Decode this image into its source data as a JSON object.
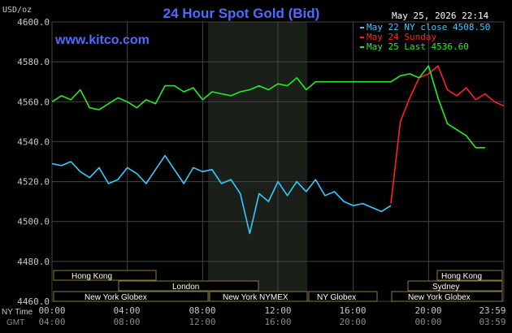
{
  "header": {
    "title": "24 Hour Spot Gold (Bid)",
    "datetime": "May 25, 2026 22:14",
    "website": "www.kitco.com",
    "unit": "USD/oz"
  },
  "legend": [
    {
      "label": "May 22 NY close 4508.50",
      "color": "#33ccff"
    },
    {
      "label": "May 24 Sunday",
      "color": "#ff2222"
    },
    {
      "label": "May 25 Last 4536.60",
      "color": "#22ee22"
    }
  ],
  "axis": {
    "y_labels": [
      "4600.0",
      "4580.0",
      "4560.0",
      "4540.0",
      "4520.0",
      "4500.0",
      "4480.0",
      "4460.0"
    ],
    "x_ny_caption": "NY Time",
    "x_gmt_caption": "GMT",
    "x_ny_labels": [
      "00:00",
      "04:00",
      "08:00",
      "12:00",
      "16:00",
      "20:00",
      "23:59"
    ],
    "x_gmt_labels": [
      "04:00",
      "08:00",
      "12:00",
      "16:00",
      "20:00",
      "00:00",
      "03:59"
    ]
  },
  "markets": {
    "hong_kong_1": "Hong Kong",
    "london": "London",
    "new_york_globex_1": "New York Globex",
    "new_york_nymex": "New York NYMEX",
    "ny_globex": "NY Globex",
    "hong_kong_2": "Hong Kong",
    "sydney": "Sydney",
    "new_york_globex_2": "New York Globex"
  },
  "colors": {
    "background": "#000000",
    "grid": "#444444",
    "highlight": "#1a1f1a",
    "title": "#4f6cff",
    "text": "#ffffff",
    "axis_text": "#c8c8c8"
  },
  "chart_data": {
    "type": "line",
    "title": "24 Hour Spot Gold (Bid)",
    "ylabel": "USD/oz",
    "xlabel": "NY Time / GMT",
    "ylim": [
      4460,
      4600
    ],
    "xlim_hours": [
      0,
      24
    ],
    "series": [
      {
        "name": "May 22 NY close 4508.50",
        "color": "#33ccff",
        "x": [
          0,
          0.5,
          1,
          1.5,
          2,
          2.5,
          3,
          3.5,
          4,
          4.5,
          5,
          5.5,
          6,
          6.5,
          7,
          7.5,
          8,
          8.5,
          9,
          9.5,
          10,
          10.5,
          11,
          11.5,
          12,
          12.5,
          13,
          13.5,
          14,
          14.5,
          15,
          15.5,
          16,
          16.5,
          17,
          17.5,
          18,
          18.5,
          19,
          19.5,
          20,
          20.5,
          21,
          21.5,
          22,
          22.5,
          23,
          23.5,
          23.99
        ],
        "y": [
          4529,
          4528,
          4530,
          4525,
          4522,
          4527,
          4519,
          4521,
          4527,
          4524,
          4519,
          4526,
          4533,
          4526,
          4519,
          4527,
          4525,
          4526,
          4519,
          4521,
          4514,
          4494,
          4514,
          4510,
          4520,
          4513,
          4520,
          4515,
          4521,
          4513,
          4515,
          4510,
          4508,
          4509,
          4507,
          4505,
          4508,
          null,
          null,
          null,
          null,
          null,
          null,
          null,
          null,
          null,
          null,
          null,
          null
        ]
      },
      {
        "name": "May 24 Sunday",
        "color": "#ff2222",
        "x": [
          0,
          0.5,
          1,
          1.5,
          2,
          2.5,
          3,
          3.5,
          4,
          4.5,
          5,
          5.5,
          6,
          6.5,
          7,
          7.5,
          8,
          8.5,
          9,
          9.5,
          10,
          10.5,
          11,
          11.5,
          12,
          12.5,
          13,
          13.5,
          14,
          14.5,
          15,
          15.5,
          16,
          16.5,
          17,
          17.5,
          18,
          18.5,
          19,
          19.5,
          20,
          20.5,
          21,
          21.5,
          22,
          22.5,
          23,
          23.5,
          23.99
        ],
        "y": [
          null,
          null,
          null,
          null,
          null,
          null,
          null,
          null,
          null,
          null,
          null,
          null,
          null,
          null,
          null,
          null,
          null,
          null,
          null,
          null,
          null,
          null,
          null,
          null,
          null,
          null,
          null,
          null,
          null,
          null,
          null,
          null,
          null,
          null,
          null,
          null,
          4509,
          4550,
          4562,
          4572,
          4574,
          4578,
          4566,
          4563,
          4567,
          4561,
          4564,
          4560,
          4558
        ]
      },
      {
        "name": "May 25 Last 4536.60",
        "color": "#22ee22",
        "x": [
          0,
          0.5,
          1,
          1.5,
          2,
          2.5,
          3,
          3.5,
          4,
          4.5,
          5,
          5.5,
          6,
          6.5,
          7,
          7.5,
          8,
          8.5,
          9,
          9.5,
          10,
          10.5,
          11,
          11.5,
          12,
          12.5,
          13,
          13.5,
          14,
          14.5,
          15,
          15.5,
          16,
          16.5,
          17,
          17.5,
          18,
          18.5,
          19,
          19.5,
          20,
          20.5,
          21,
          21.5,
          22,
          22.5,
          23,
          23.5,
          23.99
        ],
        "y": [
          4560,
          4563,
          4561,
          4566,
          4557,
          4556,
          4559,
          4562,
          4560,
          4557,
          4561,
          4559,
          4568,
          4568,
          4565,
          4567,
          4561,
          4565,
          4564,
          4563,
          4565,
          4566,
          4568,
          4566,
          4569,
          4568,
          4572,
          4566,
          4570,
          4570,
          4570,
          4570,
          4570,
          4570,
          4570,
          4570,
          4570,
          4573,
          4574,
          4572,
          4578,
          4562,
          4549,
          4546,
          4543,
          4537,
          4537,
          null,
          null
        ]
      }
    ]
  }
}
